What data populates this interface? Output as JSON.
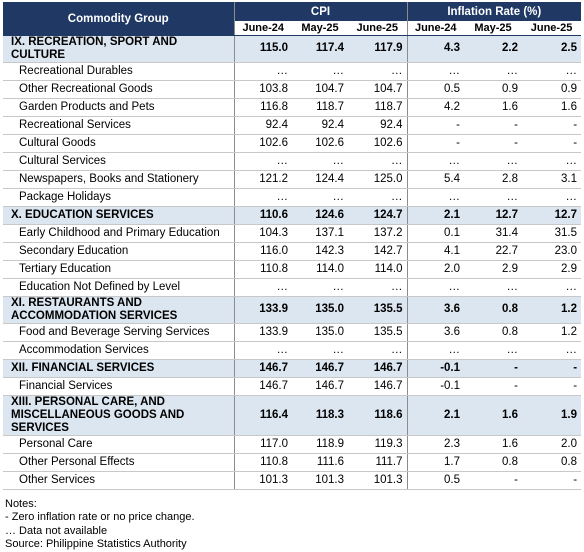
{
  "table": {
    "header": {
      "group": "Commodity Group",
      "cpi": "CPI",
      "inflation": "Inflation Rate (%)",
      "periods": [
        "June-24",
        "May-25",
        "June-25",
        "June-24",
        "May-25",
        "June-25"
      ]
    },
    "rows": [
      {
        "label": "IX. RECREATION, SPORT AND CULTURE",
        "section": true,
        "values": [
          "115.0",
          "117.4",
          "117.9",
          "4.3",
          "2.2",
          "2.5"
        ]
      },
      {
        "label": "Recreational Durables",
        "section": false,
        "values": [
          "…",
          "…",
          "…",
          "…",
          "…",
          "…"
        ]
      },
      {
        "label": "Other Recreational Goods",
        "section": false,
        "values": [
          "103.8",
          "104.7",
          "104.7",
          "0.5",
          "0.9",
          "0.9"
        ]
      },
      {
        "label": "Garden Products and Pets",
        "section": false,
        "values": [
          "116.8",
          "118.7",
          "118.7",
          "4.2",
          "1.6",
          "1.6"
        ]
      },
      {
        "label": "Recreational Services",
        "section": false,
        "values": [
          "92.4",
          "92.4",
          "92.4",
          "-",
          "-",
          "-"
        ]
      },
      {
        "label": "Cultural Goods",
        "section": false,
        "values": [
          "102.6",
          "102.6",
          "102.6",
          "-",
          "-",
          "-"
        ]
      },
      {
        "label": "Cultural Services",
        "section": false,
        "values": [
          "…",
          "…",
          "…",
          "…",
          "…",
          "…"
        ]
      },
      {
        "label": "Newspapers, Books and Stationery",
        "section": false,
        "values": [
          "121.2",
          "124.4",
          "125.0",
          "5.4",
          "2.8",
          "3.1"
        ]
      },
      {
        "label": "Package Holidays",
        "section": false,
        "values": [
          "…",
          "…",
          "…",
          "…",
          "…",
          "…"
        ]
      },
      {
        "label": "X. EDUCATION SERVICES",
        "section": true,
        "values": [
          "110.6",
          "124.6",
          "124.7",
          "2.1",
          "12.7",
          "12.7"
        ]
      },
      {
        "label": "Early Childhood and Primary  Education",
        "section": false,
        "values": [
          "104.3",
          "137.1",
          "137.2",
          "0.1",
          "31.4",
          "31.5"
        ]
      },
      {
        "label": "Secondary Education",
        "section": false,
        "values": [
          "116.0",
          "142.3",
          "142.7",
          "4.1",
          "22.7",
          "23.0"
        ]
      },
      {
        "label": "Tertiary Education",
        "section": false,
        "values": [
          "110.8",
          "114.0",
          "114.0",
          "2.0",
          "2.9",
          "2.9"
        ]
      },
      {
        "label": "Education Not Defined by Level",
        "section": false,
        "values": [
          "…",
          "…",
          "…",
          "…",
          "…",
          "…"
        ]
      },
      {
        "label": "XI. RESTAURANTS AND ACCOMMODATION SERVICES",
        "section": true,
        "values": [
          "133.9",
          "135.0",
          "135.5",
          "3.6",
          "0.8",
          "1.2"
        ]
      },
      {
        "label": "Food and Beverage Serving Services",
        "section": false,
        "values": [
          "133.9",
          "135.0",
          "135.5",
          "3.6",
          "0.8",
          "1.2"
        ]
      },
      {
        "label": "Accommodation Services",
        "section": false,
        "values": [
          "…",
          "…",
          "…",
          "…",
          "…",
          "…"
        ]
      },
      {
        "label": "XII. FINANCIAL SERVICES",
        "section": true,
        "values": [
          "146.7",
          "146.7",
          "146.7",
          "-0.1",
          "-",
          "-"
        ]
      },
      {
        "label": "Financial Services",
        "section": false,
        "values": [
          "146.7",
          "146.7",
          "146.7",
          "-0.1",
          "-",
          "-"
        ]
      },
      {
        "label": "XIII. PERSONAL CARE, AND MISCELLANEOUS GOODS AND SERVICES",
        "section": true,
        "values": [
          "116.4",
          "118.3",
          "118.6",
          "2.1",
          "1.6",
          "1.9"
        ]
      },
      {
        "label": "Personal Care",
        "section": false,
        "values": [
          "117.0",
          "118.9",
          "119.3",
          "2.3",
          "1.6",
          "2.0"
        ]
      },
      {
        "label": "Other Personal Effects",
        "section": false,
        "values": [
          "110.8",
          "111.6",
          "111.7",
          "1.7",
          "0.8",
          "0.8"
        ]
      },
      {
        "label": "Other Services",
        "section": false,
        "values": [
          "101.3",
          "101.3",
          "101.3",
          "0.5",
          "-",
          "-"
        ]
      }
    ]
  },
  "notes": {
    "title": "Notes:",
    "lines": [
      "- Zero inflation rate or no price change.",
      "… Data not available",
      "Source: Philippine Statistics Authority"
    ]
  }
}
